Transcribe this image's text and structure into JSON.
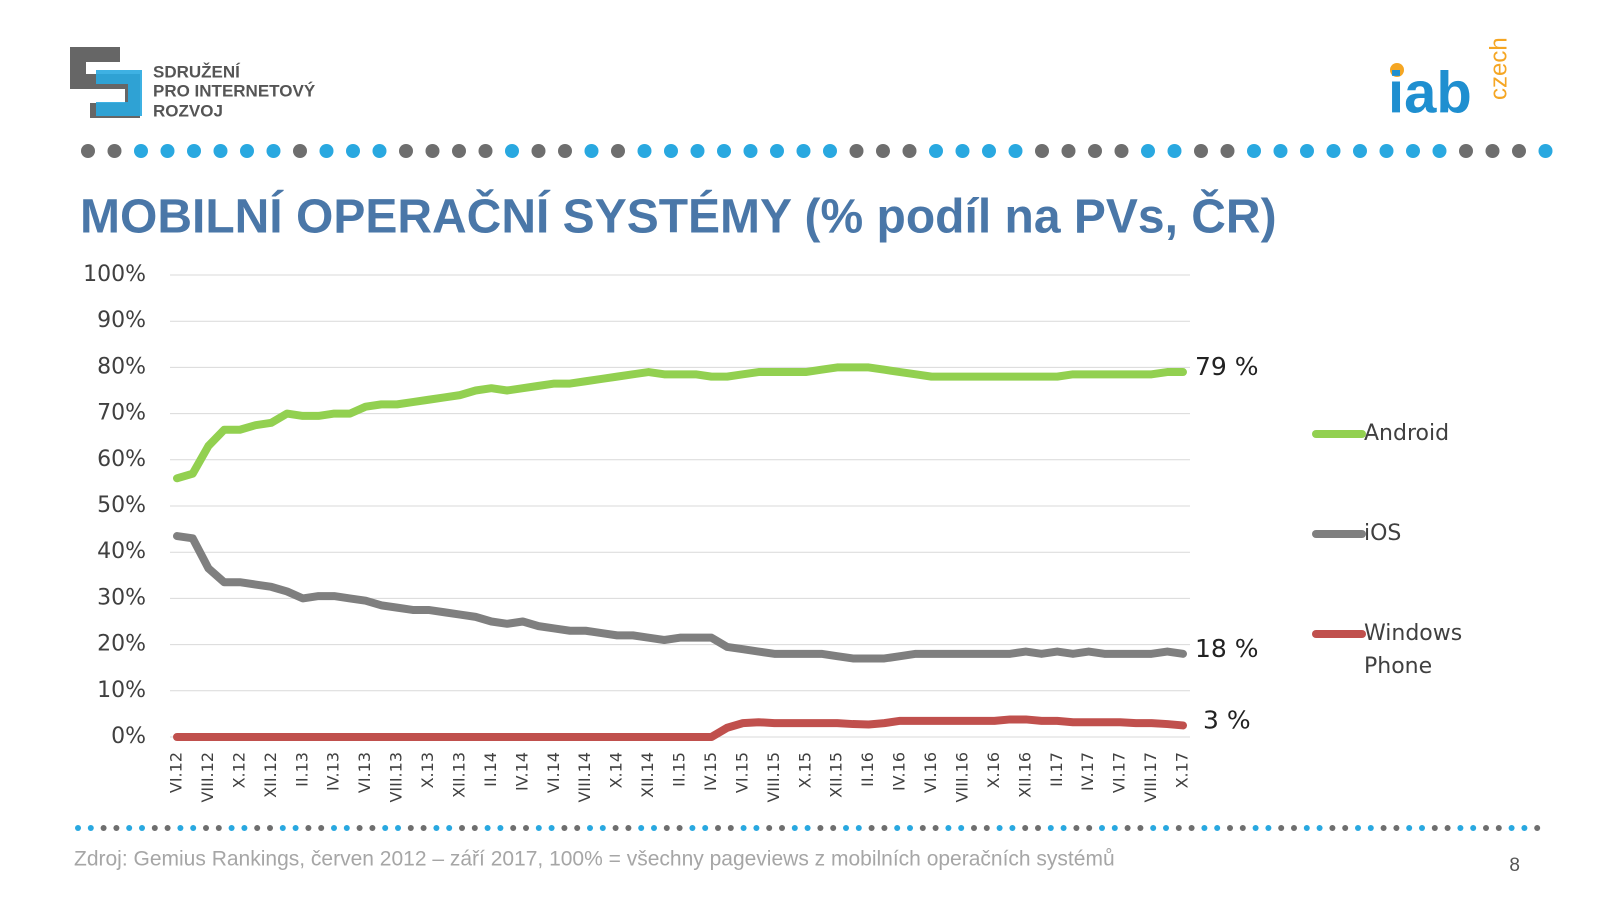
{
  "header": {
    "logo_lines": [
      "SDRUŽENÍ",
      "PRO INTERNETOVÝ",
      "ROZVOJ"
    ],
    "iab": "iab",
    "iab_suffix": "czech"
  },
  "chart_data": {
    "type": "line",
    "title": "MOBILNÍ OPERAČNÍ SYSTÉMY (% podíl na PVs, ČR)",
    "categories": [
      "VI.12",
      null,
      "VIII.12",
      null,
      "X.12",
      null,
      "XII.12",
      null,
      "II.13",
      null,
      "IV.13",
      null,
      "VI.13",
      null,
      "VIII.13",
      null,
      "X.13",
      null,
      "XII.13",
      null,
      "II.14",
      null,
      "IV.14",
      null,
      "VI.14",
      null,
      "VIII.14",
      null,
      "X.14",
      null,
      "XII.14",
      null,
      "II.15",
      null,
      "IV.15",
      null,
      "VI.15",
      null,
      "VIII.15",
      null,
      "X.15",
      null,
      "XII.15",
      null,
      "II.16",
      null,
      "IV.16",
      null,
      "VI.16",
      null,
      "VIII.16",
      null,
      "X.16",
      null,
      "XII.16",
      null,
      "II.17",
      null,
      "IV.17",
      null,
      "VI.17",
      null,
      "VIII.17",
      null,
      "X.17"
    ],
    "series": [
      {
        "name": "Android",
        "color": "#92d050",
        "end_label": "79 %",
        "values": [
          56,
          57,
          63,
          66.5,
          66.5,
          67.5,
          68,
          70,
          69.5,
          69.5,
          70,
          70,
          71.5,
          72,
          72,
          72.5,
          73,
          73.5,
          74,
          75,
          75.5,
          75,
          75.5,
          76,
          76.5,
          76.5,
          77,
          77.5,
          78,
          78.5,
          79,
          78.5,
          78.5,
          78.5,
          78,
          78,
          78.5,
          79,
          79,
          79,
          79,
          79.5,
          80,
          80,
          80,
          79.5,
          79,
          78.5,
          78,
          78,
          78,
          78,
          78,
          78,
          78,
          78,
          78,
          78.5,
          78.5,
          78.5,
          78.5,
          78.5,
          78.5,
          79,
          79
        ]
      },
      {
        "name": "iOS",
        "color": "#7f7f7f",
        "end_label": "18 %",
        "values": [
          43.5,
          43,
          36.5,
          33.5,
          33.5,
          33,
          32.5,
          31.5,
          30,
          30.5,
          30.5,
          30,
          29.5,
          28.5,
          28,
          27.5,
          27.5,
          27,
          26.5,
          26,
          25,
          24.5,
          25,
          24,
          23.5,
          23,
          23,
          22.5,
          22,
          22,
          21.5,
          21,
          21.5,
          21.5,
          21.5,
          19.5,
          19,
          18.5,
          18,
          18,
          18,
          18,
          17.5,
          17,
          17,
          17,
          17.5,
          18,
          18,
          18,
          18,
          18,
          18,
          18,
          18.5,
          18,
          18.5,
          18,
          18.5,
          18,
          18,
          18,
          18,
          18.5,
          18
        ]
      },
      {
        "name": "Windows Phone",
        "color": "#c0504d",
        "end_label": "3 %",
        "values": [
          0,
          0,
          0,
          0,
          0,
          0,
          0,
          0,
          0,
          0,
          0,
          0,
          0,
          0,
          0,
          0,
          0,
          0,
          0,
          0,
          0,
          0,
          0,
          0,
          0,
          0,
          0,
          0,
          0,
          0,
          0,
          0,
          0,
          0,
          0,
          2,
          3,
          3.2,
          3,
          3,
          3,
          3,
          3,
          2.8,
          2.7,
          3,
          3.5,
          3.5,
          3.5,
          3.5,
          3.5,
          3.5,
          3.5,
          3.8,
          3.8,
          3.5,
          3.5,
          3.2,
          3.2,
          3.2,
          3.2,
          3,
          3,
          2.8,
          2.5
        ]
      }
    ],
    "ylim": [
      0,
      100
    ],
    "yticks": [
      {
        "value": 0,
        "label": "0%"
      },
      {
        "value": 10,
        "label": "10%"
      },
      {
        "value": 20,
        "label": "20%"
      },
      {
        "value": 30,
        "label": "30%"
      },
      {
        "value": 40,
        "label": "40%"
      },
      {
        "value": 50,
        "label": "50%"
      },
      {
        "value": 60,
        "label": "60%"
      },
      {
        "value": 70,
        "label": "70%"
      },
      {
        "value": 80,
        "label": "80%"
      },
      {
        "value": 90,
        "label": "90%"
      },
      {
        "value": 100,
        "label": "100%"
      }
    ],
    "grid": true,
    "legend": "right"
  },
  "footer": {
    "source": "Zdroj: Gemius Rankings,  červen 2012 – září 2017, 100% = všechny pageviews z mobilních operačních systémů",
    "page": "8"
  }
}
